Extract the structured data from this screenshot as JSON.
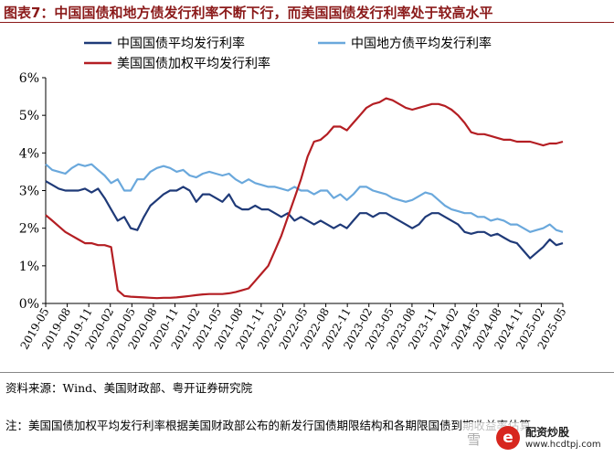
{
  "title": "图表7：中国国债和地方债发行利率不断下行，而美国国债发行利率处于较高水平",
  "source": "资料来源：Wind、美国财政部、粤开证券研究院",
  "note": "注：美国国债加权平均发行利率根据美国财政部公布的新发行国债期限结构和各期限国债到期收益率估算。",
  "watermark": {
    "brand": "配资炒股",
    "url": "www.hcdtpj.com",
    "icon": "e",
    "snow": "雪"
  },
  "chart_data": {
    "type": "line",
    "title": "",
    "xlabel": "",
    "ylabel": "",
    "ylim": [
      0,
      6
    ],
    "yticks": [
      "0%",
      "1%",
      "2%",
      "3%",
      "4%",
      "5%",
      "6%"
    ],
    "xticks": [
      "2019-05",
      "2019-08",
      "2019-11",
      "2020-02",
      "2020-05",
      "2020-08",
      "2020-11",
      "2021-02",
      "2021-05",
      "2021-08",
      "2021-11",
      "2022-02",
      "2022-05",
      "2022-08",
      "2022-11",
      "2023-02",
      "2023-05",
      "2023-08",
      "2023-11",
      "2024-02",
      "2024-05",
      "2024-08",
      "2024-11",
      "2025-02",
      "2025-05"
    ],
    "legend": "top-left",
    "grid": false,
    "series": [
      {
        "name": "中国国债平均发行利率",
        "color": "#1f3a78",
        "values": [
          3.25,
          3.15,
          3.05,
          3.0,
          3.0,
          3.0,
          3.05,
          2.95,
          3.05,
          2.8,
          2.5,
          2.2,
          2.3,
          2.0,
          1.95,
          2.3,
          2.6,
          2.75,
          2.9,
          3.0,
          3.0,
          3.1,
          3.0,
          2.7,
          2.9,
          2.9,
          2.8,
          2.7,
          2.9,
          2.6,
          2.5,
          2.5,
          2.6,
          2.5,
          2.5,
          2.4,
          2.3,
          2.4,
          2.2,
          2.3,
          2.2,
          2.1,
          2.2,
          2.1,
          2.0,
          2.1,
          2.0,
          2.2,
          2.4,
          2.4,
          2.3,
          2.4,
          2.4,
          2.3,
          2.2,
          2.1,
          2.0,
          2.1,
          2.3,
          2.4,
          2.4,
          2.3,
          2.2,
          2.1,
          1.9,
          1.85,
          1.9,
          1.9,
          1.8,
          1.85,
          1.75,
          1.65,
          1.6,
          1.4,
          1.2,
          1.35,
          1.5,
          1.7,
          1.55,
          1.6
        ]
      },
      {
        "name": "中国地方债平均发行利率",
        "color": "#6aa8dc",
        "values": [
          3.7,
          3.55,
          3.5,
          3.45,
          3.6,
          3.7,
          3.65,
          3.7,
          3.55,
          3.4,
          3.2,
          3.3,
          3.0,
          3.0,
          3.3,
          3.3,
          3.5,
          3.6,
          3.65,
          3.6,
          3.5,
          3.55,
          3.4,
          3.35,
          3.45,
          3.5,
          3.45,
          3.4,
          3.45,
          3.3,
          3.2,
          3.3,
          3.2,
          3.15,
          3.1,
          3.1,
          3.05,
          3.0,
          3.1,
          3.0,
          3.0,
          2.9,
          3.0,
          3.0,
          2.8,
          2.9,
          2.75,
          2.9,
          3.1,
          3.1,
          3.0,
          2.95,
          2.9,
          2.8,
          2.75,
          2.7,
          2.75,
          2.85,
          2.95,
          2.9,
          2.75,
          2.6,
          2.5,
          2.45,
          2.4,
          2.4,
          2.3,
          2.3,
          2.2,
          2.25,
          2.2,
          2.1,
          2.1,
          2.0,
          1.9,
          1.95,
          2.0,
          2.1,
          1.95,
          1.9
        ]
      },
      {
        "name": "美国国债加权平均发行利率",
        "color": "#b41e23",
        "values": [
          2.35,
          2.2,
          2.05,
          1.9,
          1.8,
          1.7,
          1.6,
          1.6,
          1.55,
          1.55,
          1.5,
          0.35,
          0.2,
          0.18,
          0.17,
          0.16,
          0.15,
          0.14,
          0.15,
          0.15,
          0.16,
          0.18,
          0.2,
          0.22,
          0.24,
          0.25,
          0.25,
          0.25,
          0.27,
          0.3,
          0.35,
          0.4,
          0.6,
          0.8,
          1.0,
          1.4,
          1.8,
          2.3,
          2.8,
          3.3,
          3.9,
          4.3,
          4.35,
          4.5,
          4.7,
          4.7,
          4.6,
          4.8,
          5.0,
          5.2,
          5.3,
          5.35,
          5.45,
          5.4,
          5.3,
          5.2,
          5.15,
          5.2,
          5.25,
          5.3,
          5.3,
          5.25,
          5.15,
          5.0,
          4.8,
          4.55,
          4.5,
          4.5,
          4.45,
          4.4,
          4.35,
          4.35,
          4.3,
          4.3,
          4.3,
          4.25,
          4.2,
          4.25,
          4.25,
          4.3
        ]
      }
    ]
  }
}
